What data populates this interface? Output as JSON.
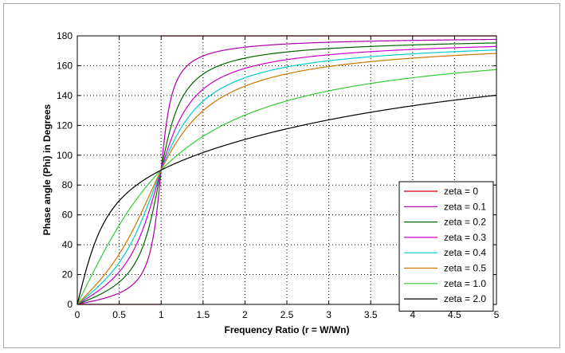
{
  "chart_data": {
    "type": "line",
    "title": "",
    "xlabel": "Frequency Ratio (r = W/Wn)",
    "ylabel": "Phase angle (Phi) in Degrees",
    "xlim": [
      0,
      5
    ],
    "ylim": [
      0,
      180
    ],
    "xticks": [
      0,
      0.5,
      1,
      1.5,
      2,
      2.5,
      3,
      3.5,
      4,
      4.5,
      5
    ],
    "xtick_labels": [
      "0",
      "0.5",
      "1",
      "1.5",
      "2",
      "2.5",
      "3",
      "3.5",
      "4",
      "4.5",
      "5"
    ],
    "yticks": [
      0,
      20,
      40,
      60,
      80,
      100,
      120,
      140,
      160,
      180
    ],
    "ytick_labels": [
      "0",
      "20",
      "40",
      "60",
      "80",
      "100",
      "120",
      "140",
      "160",
      "180"
    ],
    "grid": true,
    "legend_position": "bottom-right",
    "series": [
      {
        "name": "zeta = 0",
        "color": "#cc0000",
        "zeta": 0,
        "x": [
          0,
          0.5,
          0.99,
          1.01,
          2,
          3,
          4,
          5
        ],
        "y": [
          0,
          0,
          0,
          180,
          180,
          180,
          180,
          180
        ]
      },
      {
        "name": "zeta = 0.1",
        "color": "#aa00aa",
        "zeta": 0.1,
        "x": [
          0,
          0.5,
          0.9,
          1,
          1.1,
          1.5,
          2,
          3,
          4,
          5
        ],
        "y": [
          0,
          7.6,
          43.5,
          90,
          133.7,
          166.7,
          172.4,
          175.7,
          176.9,
          177.6
        ]
      },
      {
        "name": "zeta = 0.2",
        "color": "#006600",
        "zeta": 0.2,
        "x": [
          0,
          0.5,
          0.9,
          1,
          1.1,
          1.5,
          2,
          3,
          4,
          5
        ],
        "y": [
          0,
          14.9,
          62.2,
          90,
          115.3,
          154.4,
          165.1,
          171.5,
          173.9,
          175.2
        ]
      },
      {
        "name": "zeta = 0.3",
        "color": "#cc00cc",
        "zeta": 0.3,
        "x": [
          0,
          0.5,
          0.9,
          1,
          1.1,
          1.5,
          2,
          3,
          4,
          5
        ],
        "y": [
          0,
          21.8,
          70.5,
          90,
          107.6,
          144.2,
          158.2,
          167.5,
          171.0,
          172.9
        ]
      },
      {
        "name": "zeta = 0.4",
        "color": "#00cccc",
        "zeta": 0.4,
        "x": [
          0,
          0.5,
          0.9,
          1,
          1.1,
          1.5,
          2,
          3,
          4,
          5
        ],
        "y": [
          0,
          28.1,
          75.1,
          90,
          103.6,
          136.2,
          151.9,
          163.3,
          168.0,
          170.6
        ]
      },
      {
        "name": "zeta = 0.5",
        "color": "#cc7700",
        "zeta": 0.5,
        "x": [
          0,
          0.5,
          0.9,
          1,
          1.1,
          1.5,
          2,
          3,
          4,
          5
        ],
        "y": [
          0,
          33.7,
          78.1,
          90,
          101.1,
          130.1,
          146.3,
          159.4,
          165.1,
          168.2
        ]
      },
      {
        "name": "zeta = 1.0",
        "color": "#33cc33",
        "zeta": 1.0,
        "x": [
          0,
          0.5,
          0.9,
          1,
          1.1,
          1.5,
          2,
          3,
          4,
          5
        ],
        "y": [
          0,
          53.1,
          83.9,
          90,
          95.5,
          112.6,
          126.9,
          143.1,
          151.9,
          157.4
        ]
      },
      {
        "name": "zeta = 2.0",
        "color": "#000000",
        "zeta": 2.0,
        "x": [
          0,
          0.5,
          0.9,
          1,
          1.1,
          1.5,
          2,
          3,
          4,
          5
        ],
        "y": [
          0,
          69.4,
          87.0,
          90,
          92.7,
          102.3,
          110.6,
          123.7,
          133.1,
          139.6
        ]
      }
    ]
  }
}
